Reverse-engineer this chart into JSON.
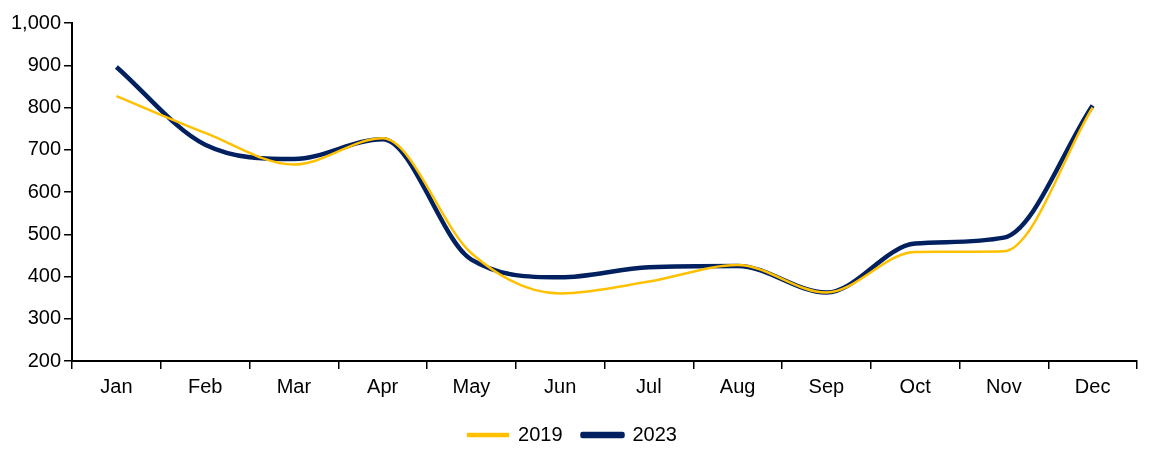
{
  "chart_data": {
    "type": "line",
    "categories": [
      "Jan",
      "Feb",
      "Mar",
      "Apr",
      "May",
      "Jun",
      "Jul",
      "Aug",
      "Sep",
      "Oct",
      "Nov",
      "Dec"
    ],
    "series": [
      {
        "name": "2019",
        "color": "#ffc000",
        "values": [
          827,
          740,
          665,
          727,
          455,
          360,
          388,
          427,
          362,
          458,
          460,
          800
        ]
      },
      {
        "name": "2023",
        "color": "#002060",
        "values": [
          896,
          712,
          678,
          725,
          440,
          398,
          422,
          425,
          362,
          478,
          492,
          805
        ]
      }
    ],
    "ylim": [
      200,
      1000
    ],
    "yticks": [
      200,
      300,
      400,
      500,
      600,
      700,
      800,
      900,
      {
        "value": 1000,
        "label": "1,000"
      }
    ],
    "grid": false,
    "legend": "bottom",
    "marker": "none",
    "line_style": "solid"
  }
}
